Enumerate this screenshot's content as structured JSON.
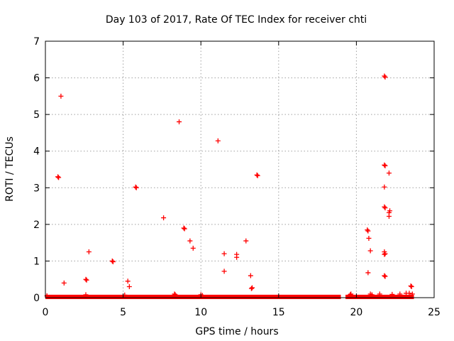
{
  "chart_data": {
    "type": "scatter",
    "title": "Day 103 of 2017, Rate Of TEC Index for receiver chti",
    "xlabel": "GPS time / hours",
    "ylabel": "ROTI / TECUs",
    "xlim": [
      0,
      25
    ],
    "ylim": [
      0,
      7
    ],
    "xticks": [
      0,
      5,
      10,
      15,
      20,
      25
    ],
    "yticks": [
      0,
      1,
      2,
      3,
      4,
      5,
      6,
      7
    ],
    "grid": true,
    "marker": "+",
    "color": "#ff0000",
    "baseline_band": {
      "x_start": 0.0,
      "x_end": 23.7,
      "y_min": 0.0,
      "y_max": 0.08,
      "gap": [
        19.0,
        19.3
      ]
    },
    "points": [
      [
        0.8,
        3.3
      ],
      [
        0.85,
        3.28
      ],
      [
        1.0,
        5.5
      ],
      [
        1.2,
        0.4
      ],
      [
        2.6,
        0.5
      ],
      [
        2.65,
        0.48
      ],
      [
        2.8,
        1.25
      ],
      [
        4.3,
        1.0
      ],
      [
        4.35,
        0.98
      ],
      [
        5.3,
        0.45
      ],
      [
        5.4,
        0.3
      ],
      [
        5.8,
        3.02
      ],
      [
        5.85,
        3.0
      ],
      [
        7.6,
        2.18
      ],
      [
        8.6,
        4.8
      ],
      [
        8.9,
        1.9
      ],
      [
        8.95,
        1.88
      ],
      [
        9.3,
        1.55
      ],
      [
        9.5,
        1.35
      ],
      [
        11.1,
        4.28
      ],
      [
        11.5,
        1.2
      ],
      [
        11.5,
        0.72
      ],
      [
        12.3,
        1.18
      ],
      [
        12.3,
        1.1
      ],
      [
        12.9,
        1.55
      ],
      [
        13.2,
        0.6
      ],
      [
        13.3,
        0.27
      ],
      [
        13.25,
        0.25
      ],
      [
        13.6,
        3.35
      ],
      [
        13.65,
        3.33
      ],
      [
        20.7,
        1.85
      ],
      [
        20.75,
        1.82
      ],
      [
        20.8,
        1.62
      ],
      [
        20.75,
        0.68
      ],
      [
        20.9,
        1.28
      ],
      [
        21.8,
        6.05
      ],
      [
        21.85,
        6.02
      ],
      [
        21.8,
        3.62
      ],
      [
        21.85,
        3.6
      ],
      [
        21.8,
        3.02
      ],
      [
        21.8,
        2.48
      ],
      [
        21.85,
        2.45
      ],
      [
        21.8,
        1.25
      ],
      [
        21.85,
        1.2
      ],
      [
        21.8,
        1.18
      ],
      [
        21.8,
        0.6
      ],
      [
        21.85,
        0.58
      ],
      [
        22.1,
        3.4
      ],
      [
        22.1,
        2.32
      ],
      [
        22.15,
        2.37
      ],
      [
        22.1,
        2.22
      ],
      [
        23.5,
        0.32
      ],
      [
        23.55,
        0.3
      ],
      [
        0.1,
        0.05
      ],
      [
        2.6,
        0.08
      ],
      [
        5.1,
        0.07
      ],
      [
        8.3,
        0.1
      ],
      [
        8.35,
        0.08
      ],
      [
        10.0,
        0.08
      ],
      [
        10.1,
        0.06
      ],
      [
        19.6,
        0.08
      ],
      [
        19.65,
        0.1
      ],
      [
        20.9,
        0.1
      ],
      [
        21.0,
        0.08
      ],
      [
        21.5,
        0.1
      ],
      [
        22.3,
        0.09
      ],
      [
        22.8,
        0.1
      ],
      [
        23.2,
        0.12
      ],
      [
        23.4,
        0.12
      ],
      [
        23.6,
        0.1
      ]
    ]
  }
}
